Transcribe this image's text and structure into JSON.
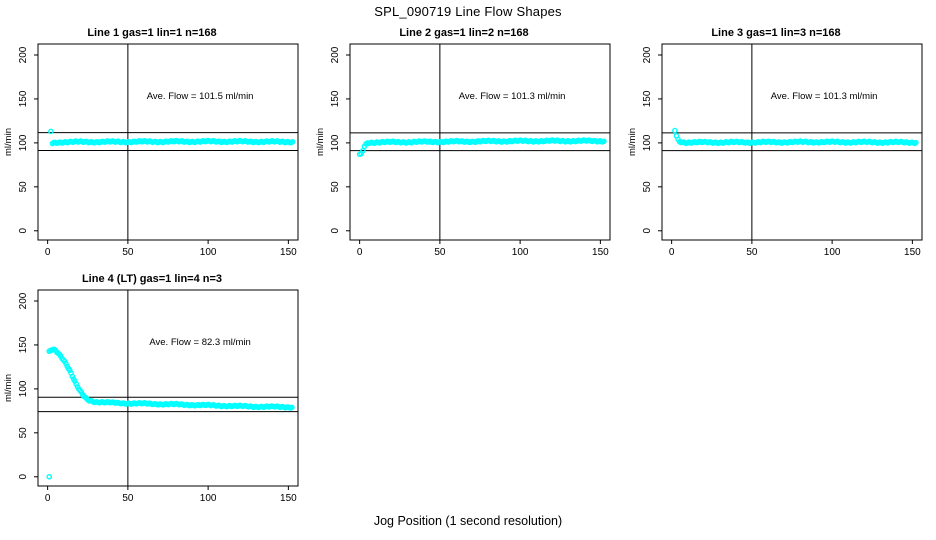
{
  "page": {
    "title": "SPL_090719  Line Flow Shapes",
    "xlabel": "Jog Position (1 second resolution)",
    "background": "#FFFFFF",
    "foreground": "#000000",
    "point_color": "#00FFFF"
  },
  "chart_data": [
    {
      "type": "scatter",
      "title": "Line 1 gas=1 lin=1 n=168",
      "line": 1,
      "gas": 1,
      "lin": 1,
      "n": 168,
      "annotation": "Ave. Flow =  101.5  ml/min",
      "ave_flow": 101.5,
      "ylabel": "ml/min",
      "xticks": [
        0,
        50,
        100,
        150
      ],
      "yticks": [
        0,
        50,
        100,
        150,
        200
      ],
      "xlim": [
        -6,
        156
      ],
      "ylim": [
        -10.5,
        212.5
      ],
      "vline_x": 50,
      "hlines_y": [
        111.7,
        91.4
      ],
      "point_color": "#00FFFF",
      "grid": false,
      "head_points": [
        [
          2,
          113
        ]
      ],
      "band": [
        [
          3,
          99.5
        ],
        [
          5,
          100.5
        ],
        [
          10,
          101
        ],
        [
          40,
          101.2
        ],
        [
          80,
          101.5
        ],
        [
          110,
          101.6
        ],
        [
          140,
          101.3
        ],
        [
          153,
          101.2
        ]
      ],
      "band_halfwidth": 1.1,
      "annotation_pos": [
        95,
        150
      ]
    },
    {
      "type": "scatter",
      "title": "Line 2 gas=1 lin=2 n=168",
      "line": 2,
      "gas": 1,
      "lin": 2,
      "n": 168,
      "annotation": "Ave. Flow =  101.3  ml/min",
      "ave_flow": 101.3,
      "ylabel": "ml/min",
      "xticks": [
        0,
        50,
        100,
        150
      ],
      "yticks": [
        0,
        50,
        100,
        150,
        200
      ],
      "xlim": [
        -6,
        156
      ],
      "ylim": [
        -10.5,
        212.5
      ],
      "vline_x": 50,
      "hlines_y": [
        111.4,
        91.2
      ],
      "point_color": "#00FFFF",
      "grid": false,
      "head_points": [
        [
          0,
          87
        ],
        [
          1,
          88
        ],
        [
          2,
          91
        ],
        [
          3,
          96
        ],
        [
          4,
          99
        ]
      ],
      "band": [
        [
          5,
          100.2
        ],
        [
          10,
          100.7
        ],
        [
          30,
          101
        ],
        [
          60,
          101.5
        ],
        [
          90,
          102
        ],
        [
          120,
          102.2
        ],
        [
          153,
          102.2
        ]
      ],
      "band_halfwidth": 1.1,
      "annotation_pos": [
        95,
        150
      ]
    },
    {
      "type": "scatter",
      "title": "Line 3 gas=1 lin=3 n=168",
      "line": 3,
      "gas": 1,
      "lin": 3,
      "n": 168,
      "annotation": "Ave. Flow =  101.3  ml/min",
      "ave_flow": 101.3,
      "ylabel": "ml/min",
      "xticks": [
        0,
        50,
        100,
        150
      ],
      "yticks": [
        0,
        50,
        100,
        150,
        200
      ],
      "xlim": [
        -6,
        156
      ],
      "ylim": [
        -10.5,
        212.5
      ],
      "vline_x": 50,
      "hlines_y": [
        111.4,
        91.2
      ],
      "point_color": "#00FFFF",
      "grid": false,
      "head_points": [
        [
          2,
          114
        ],
        [
          3,
          108
        ],
        [
          4,
          104
        ]
      ],
      "band": [
        [
          5,
          101.5
        ],
        [
          8,
          100.6
        ],
        [
          30,
          100.6
        ],
        [
          60,
          100.8
        ],
        [
          90,
          101
        ],
        [
          120,
          100.8
        ],
        [
          153,
          100.6
        ]
      ],
      "band_halfwidth": 1.1,
      "annotation_pos": [
        95,
        150
      ]
    },
    {
      "type": "scatter",
      "title": "Line 4 (LT) gas=1 lin=4 n=3",
      "line": 4,
      "line_note": "LT",
      "gas": 1,
      "lin": 4,
      "n": 3,
      "annotation": "Ave. Flow =  82.3  ml/min",
      "ave_flow": 82.3,
      "ylabel": "ml/min",
      "xticks": [
        0,
        50,
        100,
        150
      ],
      "yticks": [
        0,
        50,
        100,
        150,
        200
      ],
      "xlim": [
        -6,
        156
      ],
      "ylim": [
        -10.5,
        212.5
      ],
      "vline_x": 50,
      "hlines_y": [
        90.5,
        74.1
      ],
      "point_color": "#00FFFF",
      "grid": false,
      "head_points": [
        [
          1,
          0
        ]
      ],
      "band": [
        [
          1,
          142
        ],
        [
          2,
          144
        ],
        [
          3,
          145
        ],
        [
          5,
          144
        ],
        [
          6,
          142
        ],
        [
          8,
          138
        ],
        [
          10,
          133
        ],
        [
          12,
          127
        ],
        [
          14,
          120
        ],
        [
          16,
          112
        ],
        [
          18,
          104
        ],
        [
          20,
          98
        ],
        [
          22,
          93
        ],
        [
          24,
          89
        ],
        [
          26,
          87
        ],
        [
          28,
          86
        ],
        [
          30,
          85.3
        ],
        [
          35,
          84.6
        ],
        [
          40,
          84.2
        ],
        [
          50,
          83.6
        ],
        [
          60,
          83.2
        ],
        [
          70,
          82.8
        ],
        [
          80,
          82.3
        ],
        [
          90,
          81.8
        ],
        [
          100,
          81.3
        ],
        [
          110,
          80.8
        ],
        [
          120,
          80.3
        ],
        [
          130,
          79.9
        ],
        [
          140,
          79.6
        ],
        [
          150,
          79.3
        ],
        [
          153,
          79.2
        ]
      ],
      "band_halfwidth": 1.0,
      "annotation_pos": [
        95,
        150
      ]
    }
  ]
}
